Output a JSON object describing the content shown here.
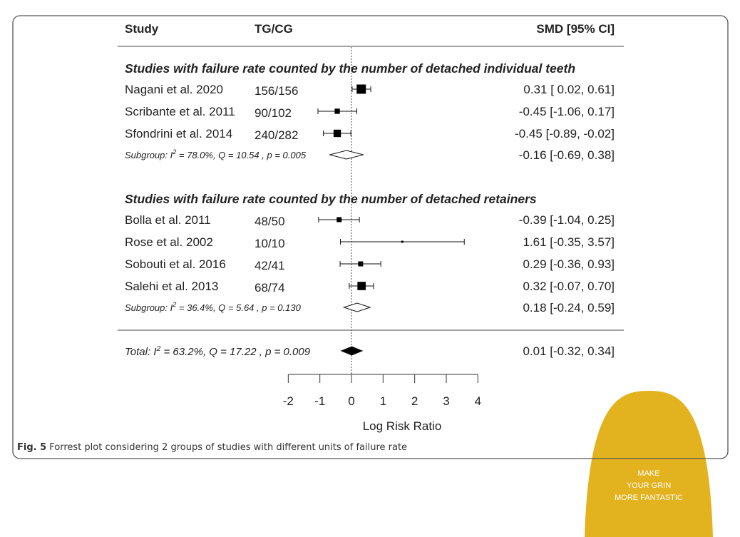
{
  "chart_data": {
    "type": "forest",
    "headers": {
      "study": "Study",
      "counts": "TG/CG",
      "effect": "SMD [95% CI]"
    },
    "xlabel": "Log Risk Ratio",
    "xlim": [
      -2,
      4
    ],
    "xticks": [
      "-2",
      "-1",
      "0",
      "1",
      "2",
      "3",
      "4"
    ],
    "reference_line": 0,
    "groups": [
      {
        "title": "Studies with failure rate counted by the number of detached individual teeth",
        "studies": [
          {
            "name": "Nagani et al. 2020",
            "counts": "156/156",
            "est": 0.31,
            "lo": 0.02,
            "hi": 0.61,
            "label": "0.31 [ 0.02,  0.61]"
          },
          {
            "name": "Scribante et al. 2011",
            "counts": "90/102",
            "est": -0.45,
            "lo": -1.06,
            "hi": 0.17,
            "label": "-0.45 [-1.06,  0.17]"
          },
          {
            "name": "Sfondrini et al. 2014",
            "counts": "240/282",
            "est": -0.45,
            "lo": -0.89,
            "hi": -0.02,
            "label": "-0.45 [-0.89, -0.02]"
          }
        ],
        "subgroup": {
          "text_prefix": "Subgroup: I",
          "sup": "2",
          "text_suffix": " = 78.0%, Q = 10.54 , p  = 0.005",
          "est": -0.16,
          "lo": -0.69,
          "hi": 0.38,
          "label": "-0.16 [-0.69, 0.38]"
        }
      },
      {
        "title": "Studies with failure rate counted by the number of detached retainers",
        "studies": [
          {
            "name": "Bolla et al. 2011",
            "counts": "48/50",
            "est": -0.39,
            "lo": -1.04,
            "hi": 0.25,
            "label": "-0.39 [-1.04,  0.25]"
          },
          {
            "name": "Rose et al. 2002",
            "counts": "10/10",
            "est": 1.61,
            "lo": -0.35,
            "hi": 3.57,
            "label": "1.61 [-0.35,  3.57]"
          },
          {
            "name": "Sobouti et al. 2016",
            "counts": "42/41",
            "est": 0.29,
            "lo": -0.36,
            "hi": 0.93,
            "label": "0.29 [-0.36,  0.93]"
          },
          {
            "name": "Salehi et al. 2013",
            "counts": "68/74",
            "est": 0.32,
            "lo": -0.07,
            "hi": 0.7,
            "label": "0.32 [-0.07,  0.70]"
          }
        ],
        "subgroup": {
          "text_prefix": "Subgroup: I",
          "sup": "2",
          "text_suffix": " = 36.4%, Q = 5.64 , p  = 0.130",
          "est": 0.18,
          "lo": -0.24,
          "hi": 0.59,
          "label": "0.18 [-0.24, 0.59]"
        }
      }
    ],
    "total": {
      "text_prefix": "Total: I",
      "sup": "2",
      "text_suffix": " = 63.2%, Q = 17.22 , p  = 0.009",
      "est": 0.01,
      "lo": -0.32,
      "hi": 0.34,
      "label": "0.01 [-0.32,  0.34]"
    }
  },
  "caption": {
    "label": "Fig. 5",
    "text": " Forrest plot considering 2 groups of studies with different units of failure rate"
  },
  "ad": {
    "lines": [
      "MAKE",
      "YOUR GRIN",
      "MORE FANTASTIC"
    ],
    "color": "#e2b21f"
  }
}
